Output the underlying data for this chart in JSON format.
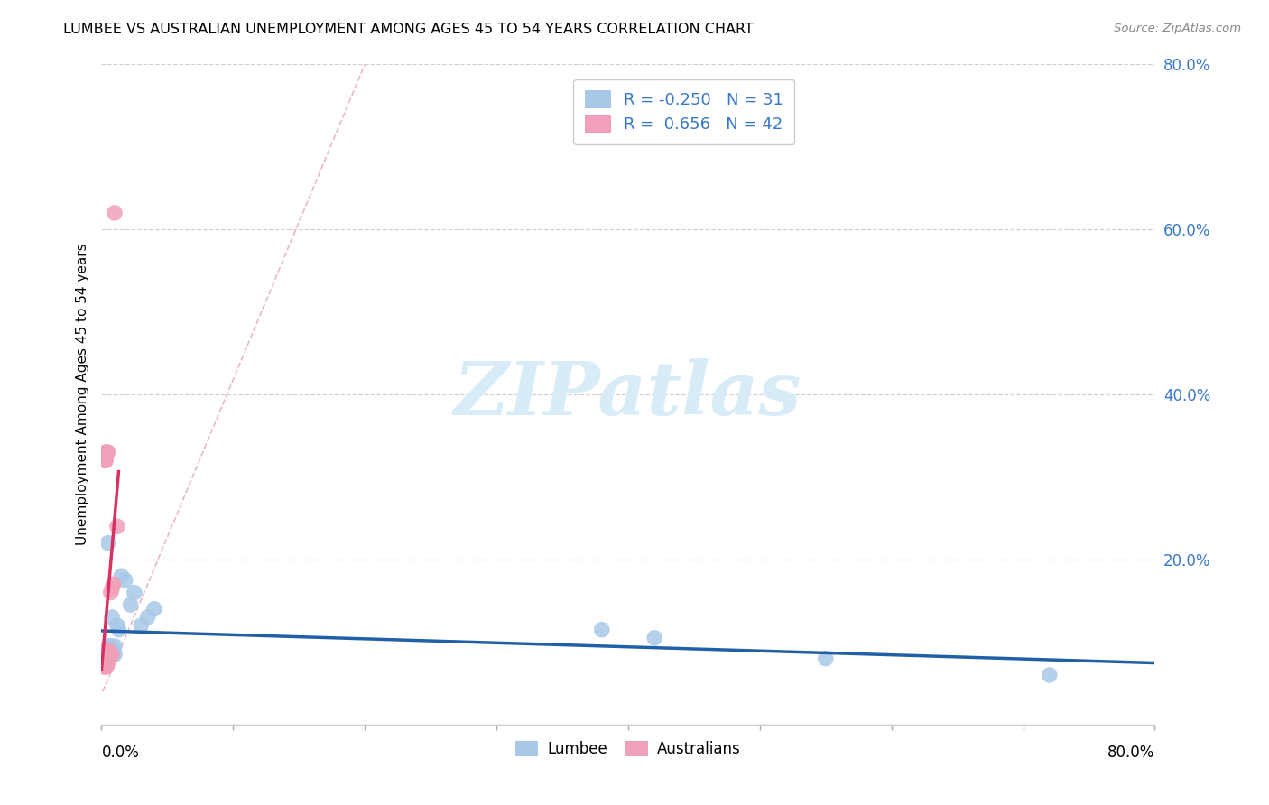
{
  "title": "LUMBEE VS AUSTRALIAN UNEMPLOYMENT AMONG AGES 45 TO 54 YEARS CORRELATION CHART",
  "source": "Source: ZipAtlas.com",
  "ylabel": "Unemployment Among Ages 45 to 54 years",
  "legend_lumbee": "Lumbee",
  "legend_australians": "Australians",
  "lumbee_R": -0.25,
  "lumbee_N": 31,
  "australians_R": 0.656,
  "australians_N": 42,
  "lumbee_color": "#a8c8e8",
  "lumbee_trend_color": "#2060a8",
  "australians_color": "#f0a0b8",
  "australians_trend_color": "#d83060",
  "diag_color": "#e8b0c0",
  "background_color": "#ffffff",
  "watermark_color": "#d8ecf8",
  "lumbee_x": [
    0.002,
    0.003,
    0.003,
    0.004,
    0.004,
    0.005,
    0.005,
    0.005,
    0.005,
    0.006,
    0.006,
    0.007,
    0.007,
    0.008,
    0.008,
    0.009,
    0.01,
    0.01,
    0.012,
    0.013,
    0.015,
    0.018,
    0.022,
    0.025,
    0.03,
    0.035,
    0.04,
    0.38,
    0.42,
    0.55,
    0.72
  ],
  "lumbee_y": [
    0.08,
    0.085,
    0.09,
    0.075,
    0.085,
    0.09,
    0.095,
    0.22,
    0.09,
    0.085,
    0.09,
    0.09,
    0.095,
    0.09,
    0.13,
    0.09,
    0.085,
    0.095,
    0.12,
    0.115,
    0.18,
    0.175,
    0.145,
    0.16,
    0.12,
    0.13,
    0.14,
    0.115,
    0.105,
    0.08,
    0.06
  ],
  "australians_x": [
    0.001,
    0.001,
    0.002,
    0.002,
    0.002,
    0.002,
    0.002,
    0.002,
    0.003,
    0.003,
    0.003,
    0.003,
    0.003,
    0.003,
    0.003,
    0.003,
    0.003,
    0.003,
    0.003,
    0.003,
    0.003,
    0.003,
    0.003,
    0.004,
    0.004,
    0.004,
    0.004,
    0.004,
    0.004,
    0.005,
    0.005,
    0.005,
    0.005,
    0.005,
    0.006,
    0.006,
    0.007,
    0.008,
    0.008,
    0.009,
    0.01,
    0.012
  ],
  "australians_y": [
    0.07,
    0.075,
    0.07,
    0.075,
    0.075,
    0.08,
    0.08,
    0.08,
    0.07,
    0.075,
    0.075,
    0.075,
    0.08,
    0.08,
    0.08,
    0.085,
    0.085,
    0.09,
    0.32,
    0.32,
    0.32,
    0.32,
    0.33,
    0.07,
    0.075,
    0.08,
    0.085,
    0.09,
    0.33,
    0.075,
    0.08,
    0.085,
    0.09,
    0.33,
    0.08,
    0.085,
    0.16,
    0.085,
    0.165,
    0.17,
    0.62,
    0.24
  ],
  "xlim": [
    0.0,
    0.8
  ],
  "ylim": [
    0.0,
    0.8
  ],
  "yticks": [
    0.0,
    0.2,
    0.4,
    0.6,
    0.8
  ],
  "ytick_labels": [
    "",
    "20.0%",
    "40.0%",
    "60.0%",
    "80.0%"
  ],
  "xticks": [
    0.0,
    0.1,
    0.2,
    0.3,
    0.4,
    0.5,
    0.6,
    0.7,
    0.8
  ]
}
